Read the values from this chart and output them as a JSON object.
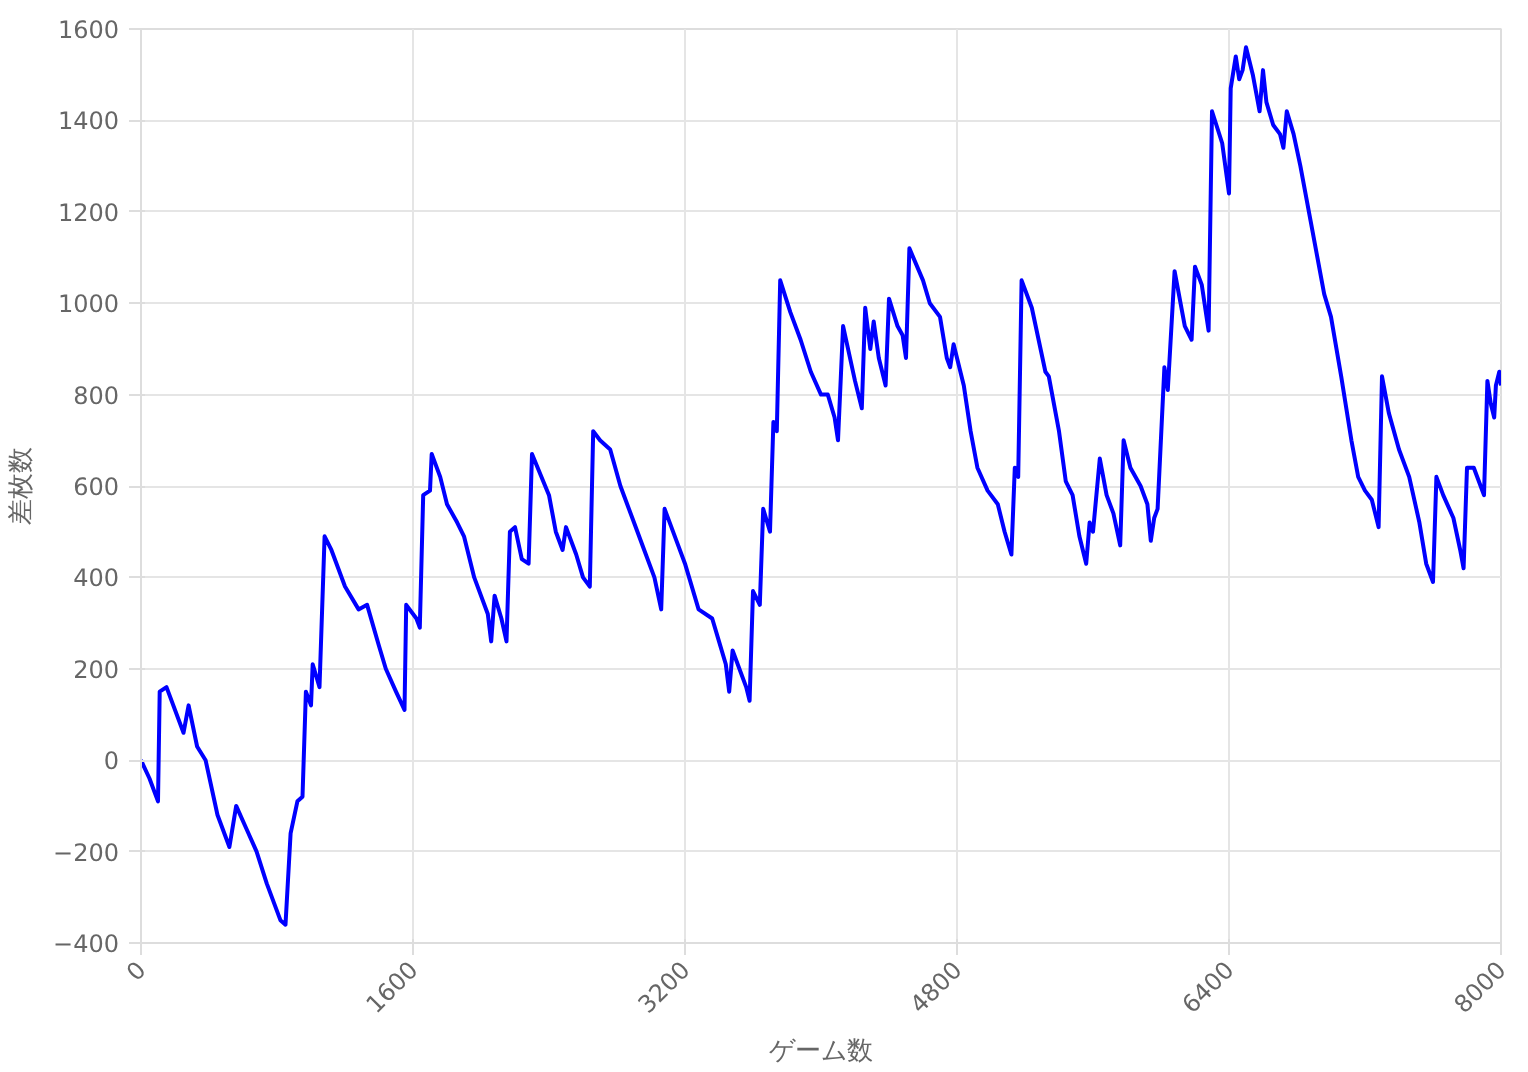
{
  "chart_data": {
    "type": "line",
    "xlabel": "ゲーム数",
    "ylabel": "差枚数",
    "x": [
      0,
      50,
      100,
      110,
      150,
      250,
      280,
      330,
      380,
      450,
      520,
      560,
      620,
      680,
      740,
      820,
      850,
      880,
      920,
      950,
      970,
      1000,
      1010,
      1050,
      1080,
      1120,
      1200,
      1280,
      1330,
      1400,
      1440,
      1500,
      1550,
      1560,
      1620,
      1640,
      1660,
      1700,
      1710,
      1760,
      1800,
      1860,
      1900,
      1960,
      2040,
      2060,
      2080,
      2120,
      2150,
      2170,
      2200,
      2240,
      2280,
      2300,
      2400,
      2440,
      2480,
      2500,
      2560,
      2600,
      2640,
      2660,
      2700,
      2760,
      2820,
      2900,
      2960,
      3020,
      3060,
      3080,
      3150,
      3200,
      3280,
      3360,
      3400,
      3440,
      3460,
      3480,
      3560,
      3580,
      3600,
      3640,
      3660,
      3700,
      3720,
      3740,
      3760,
      3820,
      3880,
      3940,
      4000,
      4040,
      4080,
      4100,
      4130,
      4200,
      4240,
      4260,
      4290,
      4310,
      4340,
      4380,
      4400,
      4450,
      4480,
      4500,
      4520,
      4600,
      4640,
      4700,
      4740,
      4760,
      4780,
      4840,
      4880,
      4920,
      4980,
      5040,
      5080,
      5120,
      5140,
      5160,
      5180,
      5240,
      5280,
      5320,
      5340,
      5400,
      5440,
      5480,
      5520,
      5560,
      5580,
      5600,
      5640,
      5680,
      5720,
      5760,
      5780,
      5820,
      5880,
      5920,
      5940,
      5960,
      5980,
      6020,
      6040,
      6080,
      6140,
      6180,
      6200,
      6240,
      6280,
      6300,
      6360,
      6400,
      6410,
      6440,
      6460,
      6480,
      6500,
      6540,
      6560,
      6580,
      6600,
      6620,
      6660,
      6700,
      6720,
      6740,
      6780,
      6820,
      6880,
      6960,
      7000,
      7060,
      7120,
      7160,
      7200,
      7240,
      7280,
      7300,
      7340,
      7400,
      7460,
      7520,
      7560,
      7600,
      7620,
      7660,
      7720,
      7760,
      7780,
      7800,
      7840,
      7880,
      7900,
      7920,
      7940,
      7960,
      7970,
      7990,
      8000
    ],
    "series": [
      {
        "color": "#0000ff",
        "values": [
          0,
          -40,
          -90,
          150,
          160,
          60,
          120,
          30,
          0,
          -120,
          -190,
          -100,
          -150,
          -200,
          -270,
          -350,
          -360,
          -160,
          -90,
          -80,
          150,
          120,
          210,
          160,
          490,
          460,
          380,
          330,
          340,
          250,
          200,
          150,
          110,
          340,
          310,
          290,
          580,
          590,
          670,
          620,
          560,
          520,
          490,
          400,
          320,
          260,
          360,
          310,
          260,
          500,
          510,
          440,
          430,
          670,
          580,
          500,
          460,
          510,
          450,
          400,
          380,
          720,
          700,
          680,
          600,
          520,
          460,
          400,
          330,
          550,
          480,
          430,
          330,
          310,
          260,
          210,
          150,
          240,
          160,
          130,
          370,
          340,
          550,
          500,
          740,
          720,
          1050,
          980,
          920,
          850,
          800,
          800,
          750,
          700,
          950,
          830,
          770,
          990,
          900,
          960,
          880,
          820,
          1010,
          950,
          930,
          880,
          1120,
          1050,
          1000,
          970,
          880,
          860,
          910,
          820,
          720,
          640,
          590,
          560,
          500,
          450,
          640,
          620,
          1050,
          990,
          920,
          850,
          840,
          720,
          610,
          580,
          490,
          430,
          520,
          500,
          660,
          580,
          540,
          470,
          700,
          640,
          600,
          560,
          480,
          530,
          550,
          860,
          810,
          1070,
          950,
          920,
          1080,
          1040,
          940,
          1420,
          1350,
          1240,
          1470,
          1540,
          1490,
          1510,
          1560,
          1500,
          1460,
          1420,
          1510,
          1440,
          1390,
          1370,
          1340,
          1420,
          1370,
          1300,
          1180,
          1020,
          970,
          840,
          700,
          620,
          590,
          570,
          510,
          840,
          760,
          680,
          620,
          520,
          430,
          390,
          620,
          580,
          530,
          460,
          420,
          640,
          640,
          600,
          580,
          830,
          780,
          750,
          820,
          850,
          820
        ]
      }
    ],
    "xlim": [
      0,
      8000
    ],
    "xticks": [
      0,
      1600,
      3200,
      4800,
      6400,
      8000
    ],
    "ylim": [
      -400,
      1600
    ],
    "yticks": [
      -400,
      -200,
      0,
      200,
      400,
      600,
      800,
      1000,
      1200,
      1400,
      1600
    ],
    "grid": true,
    "marker": "none",
    "line_style": "solid"
  }
}
